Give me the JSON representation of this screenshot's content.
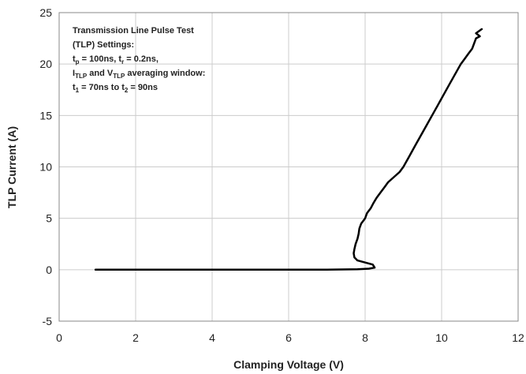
{
  "chart_data": {
    "type": "line",
    "xlabel": "Clamping Voltage (V)",
    "ylabel": "TLP Current (A)",
    "xlim": [
      0,
      12
    ],
    "ylim": [
      -5,
      25
    ],
    "xticks": [
      0,
      2,
      4,
      6,
      8,
      10,
      12
    ],
    "yticks": [
      -5,
      0,
      5,
      10,
      15,
      20,
      25
    ],
    "grid": true,
    "line_color": "#000000",
    "annotation": {
      "line1": "Transmission Line Pulse Test",
      "line2": "(TLP) Settings:",
      "line3": {
        "a": "t",
        "a_sub": "p",
        "b": " = 100ns, t",
        "b_sub": "r",
        "c": " = 0.2ns,"
      },
      "line4": {
        "a": "I",
        "a_sub": "TLP",
        "b": " and V",
        "b_sub": "TLP",
        "c": " averaging window:"
      },
      "line5": {
        "a": "t",
        "a_sub": "1",
        "b": " = 70ns to t",
        "b_sub": "2",
        "c": " = 90ns"
      }
    },
    "series": [
      {
        "x": [
          0.95,
          2.0,
          3.0,
          4.0,
          5.0,
          6.0,
          7.0,
          7.8,
          8.1,
          8.25,
          8.2,
          8.0,
          7.8,
          7.72,
          7.7,
          7.72,
          7.75,
          7.8,
          7.83,
          7.85,
          7.9,
          8.0,
          8.05,
          8.15,
          8.22,
          8.3,
          8.4,
          8.5,
          8.6,
          8.75,
          8.9,
          9.0,
          9.15,
          9.3,
          9.45,
          9.6,
          9.75,
          9.9,
          10.05,
          10.2,
          10.35,
          10.5,
          10.6,
          10.7,
          10.8,
          10.85,
          10.9,
          11.0,
          10.9,
          11.05
        ],
        "y": [
          0,
          0,
          0,
          0,
          0,
          0,
          0,
          0.05,
          0.1,
          0.2,
          0.5,
          0.7,
          0.9,
          1.2,
          1.6,
          2.0,
          2.5,
          3.0,
          3.5,
          4.0,
          4.5,
          5.0,
          5.5,
          6.0,
          6.5,
          7.0,
          7.5,
          8.0,
          8.5,
          9.0,
          9.5,
          10.0,
          11.0,
          12.0,
          13.0,
          14.0,
          15.0,
          16.0,
          17.0,
          18.0,
          19.0,
          20.0,
          20.5,
          21.0,
          21.5,
          22.0,
          22.5,
          22.7,
          23.0,
          23.4
        ]
      }
    ]
  }
}
